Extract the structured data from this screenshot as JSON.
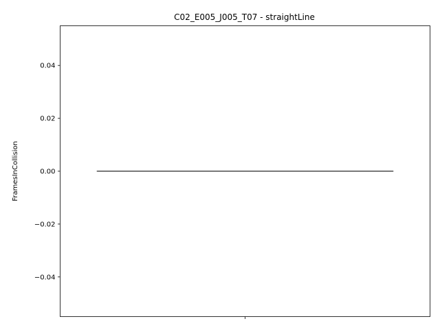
{
  "chart_data": {
    "type": "box",
    "title": "C02_E005_J005_T07 - straightLine",
    "xlabel": "",
    "ylabel": "FramesInCollision",
    "ylim": [
      -0.055,
      0.055
    ],
    "y_ticks": [
      -0.04,
      -0.02,
      0.0,
      0.02,
      0.04
    ],
    "y_tick_labels": [
      "−0.04",
      "−0.02",
      "0.00",
      "0.02",
      "0.04"
    ],
    "categories": [
      ""
    ],
    "series": [
      {
        "q1": 0.0,
        "median": 0.0,
        "q3": 0.0,
        "whisker_low": 0.0,
        "whisker_high": 0.0
      }
    ],
    "grid": false,
    "colors": {
      "box_line": "#3f3f3f",
      "axes": "#000000",
      "background": "#ffffff"
    }
  }
}
